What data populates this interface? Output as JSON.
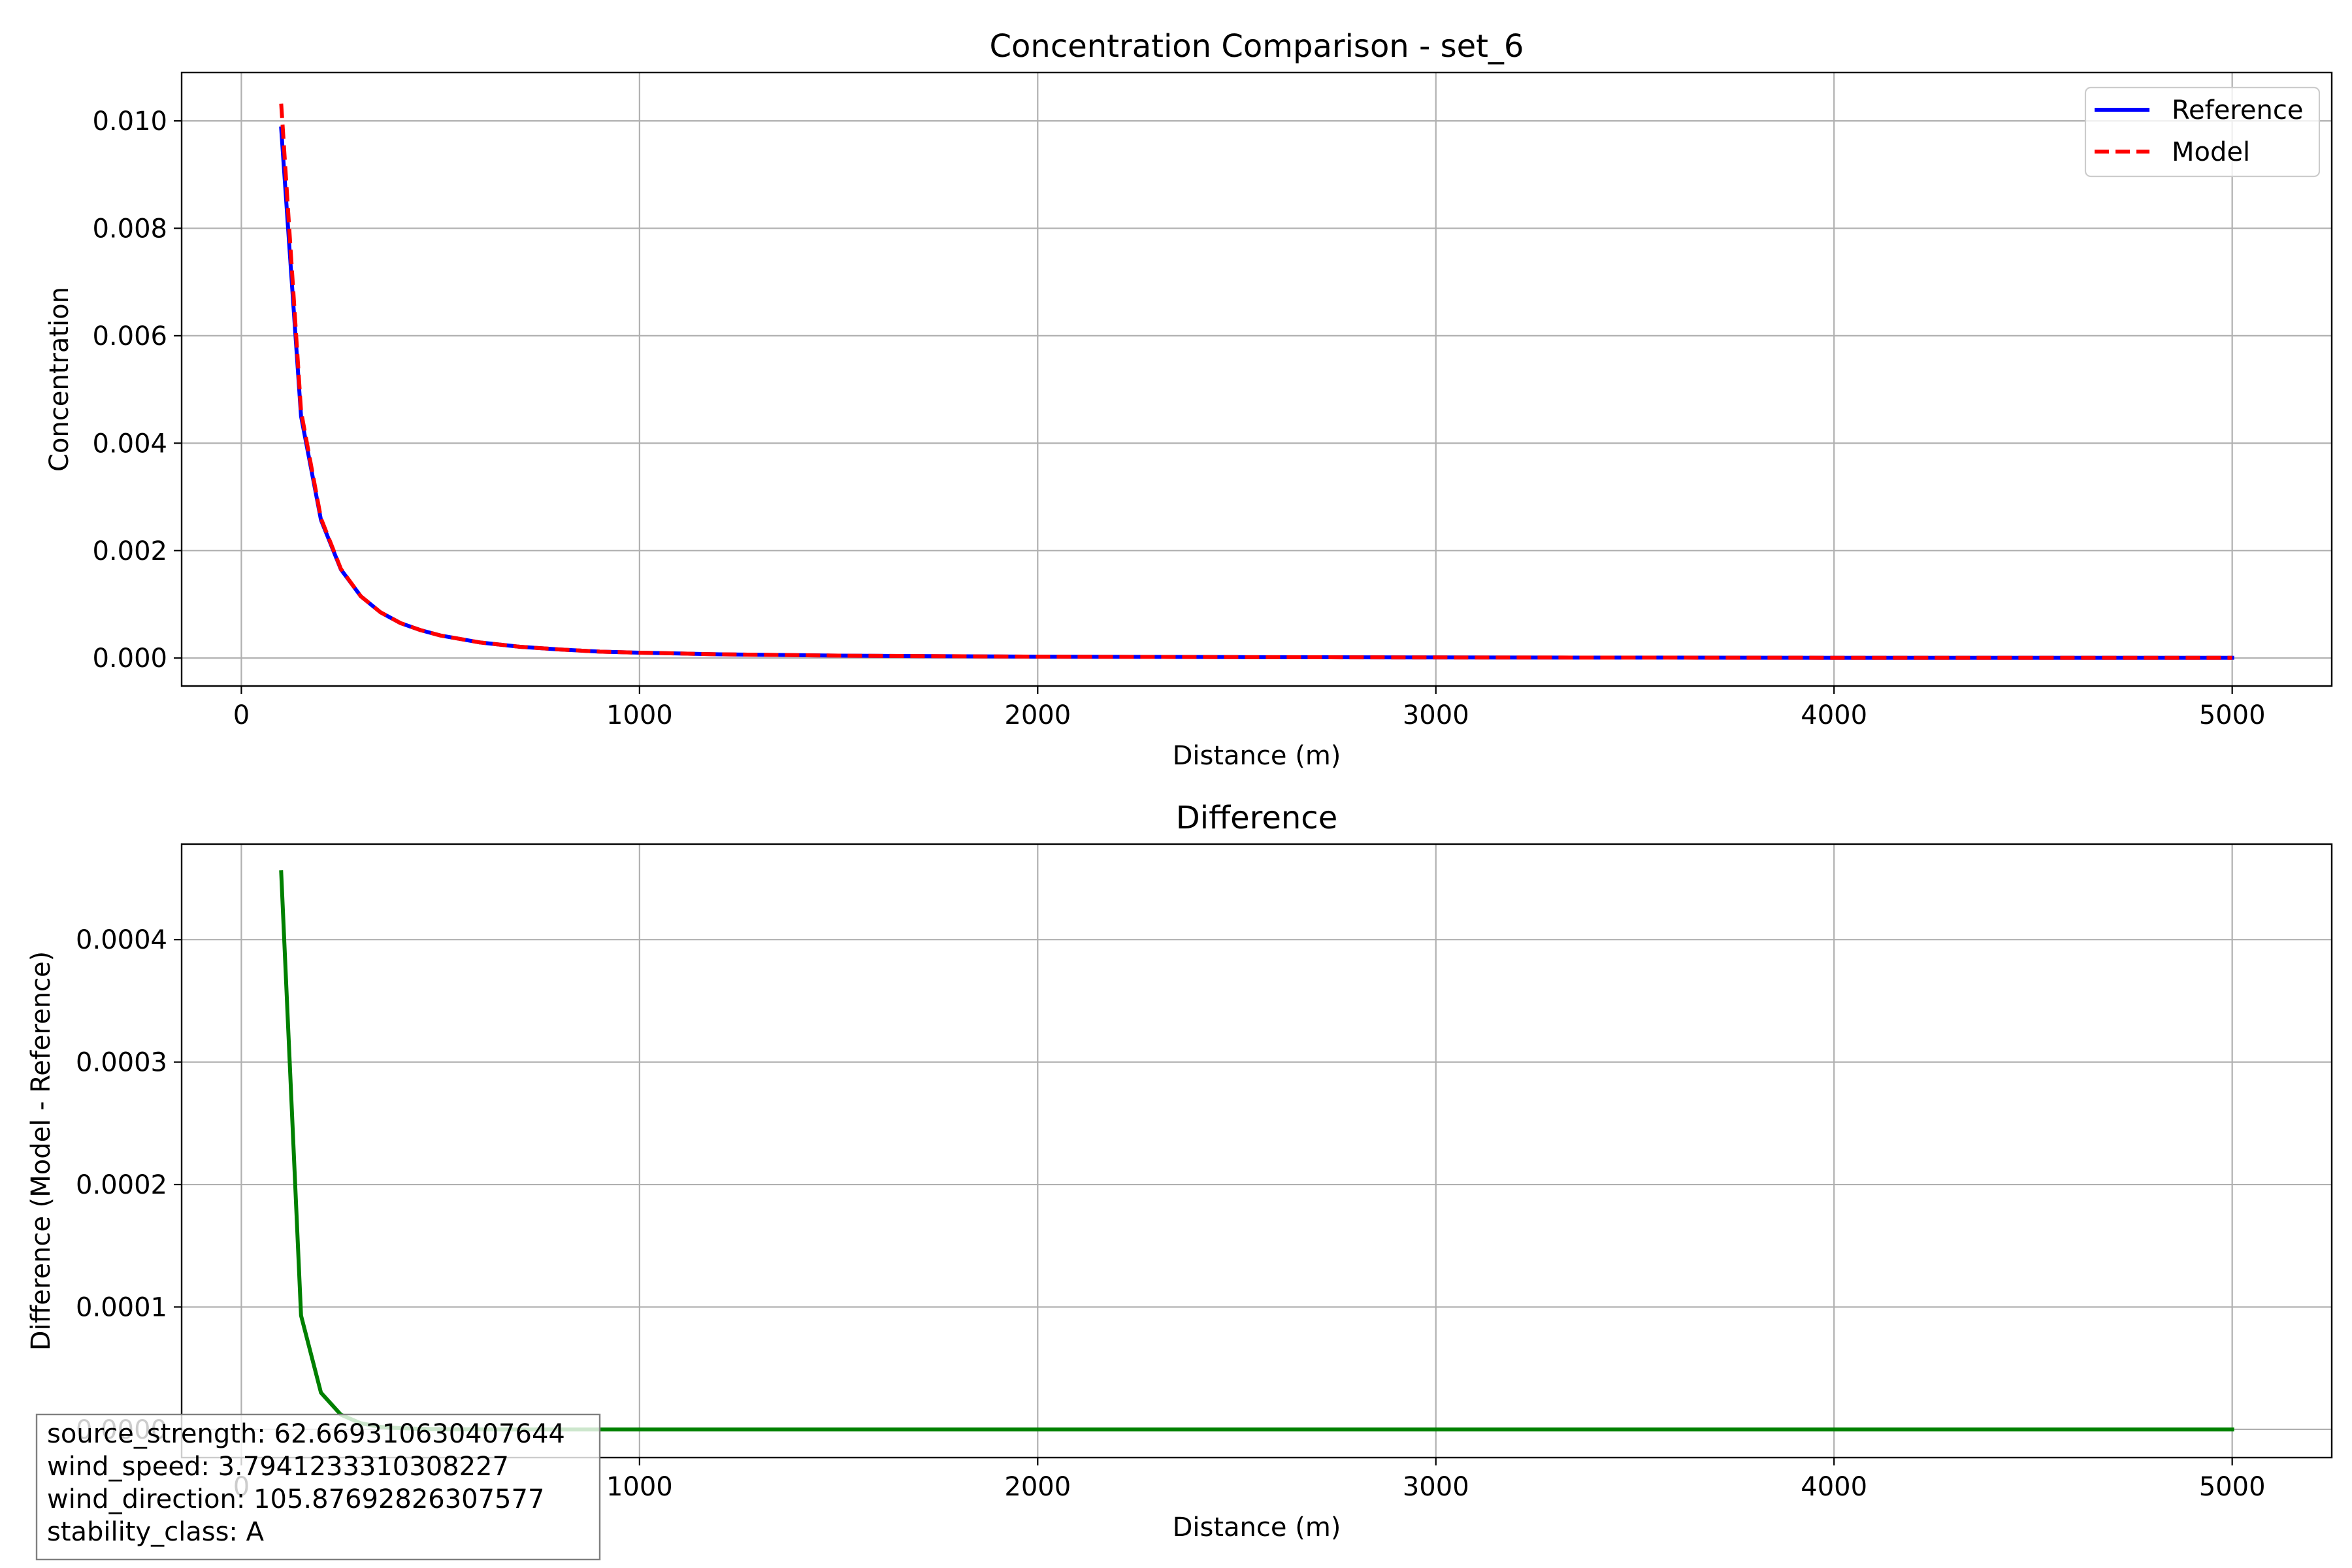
{
  "chart_data": [
    {
      "type": "line",
      "title": "Concentration Comparison - set_6",
      "xlabel": "Distance (m)",
      "ylabel": "Concentration",
      "xlim": [
        -150,
        5250
      ],
      "ylim": [
        -0.00052,
        0.0109
      ],
      "xticks": [
        0,
        1000,
        2000,
        3000,
        4000,
        5000
      ],
      "xtick_labels": [
        "0",
        "1000",
        "2000",
        "3000",
        "4000",
        "5000"
      ],
      "yticks": [
        0.0,
        0.002,
        0.004,
        0.006,
        0.008,
        0.01
      ],
      "ytick_labels": [
        "0.000",
        "0.002",
        "0.004",
        "0.006",
        "0.008",
        "0.010"
      ],
      "grid": true,
      "legend_position": "top-right",
      "x": [
        100,
        150,
        200,
        250,
        300,
        350,
        400,
        450,
        500,
        600,
        700,
        800,
        900,
        1000,
        1200,
        1500,
        2000,
        2500,
        3000,
        3500,
        4000,
        4500,
        5000
      ],
      "series": [
        {
          "name": "Reference",
          "color": "#0000ff",
          "style": "solid",
          "values": [
            0.00986,
            0.0045,
            0.00257,
            0.00165,
            0.00115,
            0.00085,
            0.00065,
            0.00052,
            0.00042,
            0.00029,
            0.00021,
            0.00016,
            0.00012,
            0.0001,
            7e-05,
            4.5e-05,
            2.6e-05,
            1.7e-05,
            1.2e-05,
            9e-06,
            7e-06,
            6e-06,
            5e-06
          ]
        },
        {
          "name": "Model",
          "color": "#ff0000",
          "style": "dashed",
          "values": [
            0.01032,
            0.00459,
            0.0026,
            0.00166,
            0.00115,
            0.00085,
            0.00065,
            0.00052,
            0.00042,
            0.00029,
            0.00021,
            0.00016,
            0.00012,
            0.0001,
            7e-05,
            4.5e-05,
            2.6e-05,
            1.7e-05,
            1.2e-05,
            9e-06,
            7e-06,
            6e-06,
            5e-06
          ]
        }
      ]
    },
    {
      "type": "line",
      "title": "Difference",
      "xlabel": "Distance (m)",
      "ylabel": "Difference (Model - Reference)",
      "xlim": [
        -150,
        5250
      ],
      "ylim": [
        -2.3e-05,
        0.000478
      ],
      "xticks": [
        0,
        1000,
        2000,
        3000,
        4000,
        5000
      ],
      "xtick_labels": [
        "0",
        "1000",
        "2000",
        "3000",
        "4000",
        "5000"
      ],
      "yticks": [
        0.0,
        0.0001,
        0.0002,
        0.0003,
        0.0004
      ],
      "ytick_labels": [
        "0.0000",
        "0.0001",
        "0.0002",
        "0.0003",
        "0.0004"
      ],
      "grid": true,
      "x": [
        100,
        150,
        200,
        250,
        300,
        350,
        400,
        450,
        500,
        600,
        700,
        800,
        900,
        1000,
        1500,
        2000,
        3000,
        4000,
        5000
      ],
      "series": [
        {
          "color": "#008000",
          "style": "solid",
          "values": [
            0.000455,
            9.3e-05,
            3e-05,
            1.2e-05,
            5e-06,
            2e-06,
            1e-06,
            5e-07,
            2e-07,
            1e-07,
            0.0,
            0.0,
            0.0,
            0.0,
            0.0,
            0.0,
            0.0,
            0.0,
            0.0
          ]
        }
      ],
      "annotation": [
        "source_strength: 62.669310630407644",
        "wind_speed: 3.7941233310308227",
        "wind_direction: 105.87692826307577",
        "stability_class: A"
      ]
    }
  ]
}
